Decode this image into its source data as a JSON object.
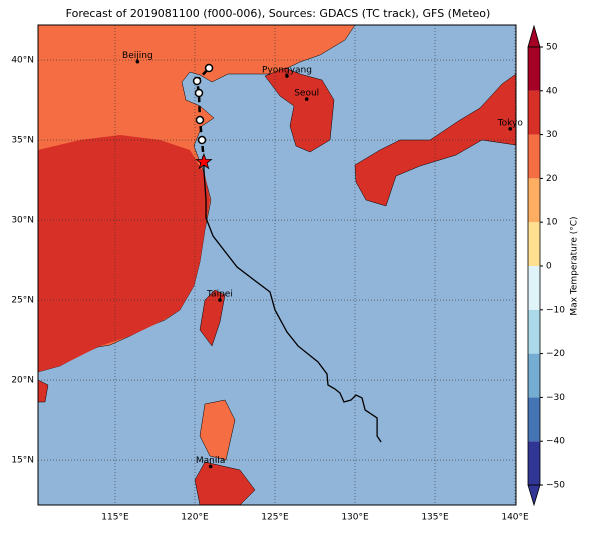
{
  "title": "Forecast of 2019081100 (f000-006), Sources: GDACS (TC track), GFS (Meteo)",
  "map": {
    "xlim": [
      110.19,
      140.06
    ],
    "ylim": [
      12.19,
      42.19
    ],
    "xticks": [
      {
        "value": 115,
        "label": "115°E"
      },
      {
        "value": 120,
        "label": "120°E"
      },
      {
        "value": 125,
        "label": "125°E"
      },
      {
        "value": 130,
        "label": "130°E"
      },
      {
        "value": 135,
        "label": "135°E"
      },
      {
        "value": 140,
        "label": "140°E"
      }
    ],
    "yticks": [
      {
        "value": 15,
        "label": "15°N"
      },
      {
        "value": 20,
        "label": "20°N"
      },
      {
        "value": 25,
        "label": "25°N"
      },
      {
        "value": 30,
        "label": "30°N"
      },
      {
        "value": 35,
        "label": "35°N"
      },
      {
        "value": 40,
        "label": "40°N"
      }
    ],
    "grid": true,
    "cities": [
      {
        "name": "Beijing",
        "lon": 116.4,
        "lat": 39.9
      },
      {
        "name": "Pyongyang",
        "lon": 125.75,
        "lat": 39.0
      },
      {
        "name": "Seoul",
        "lon": 126.98,
        "lat": 37.56
      },
      {
        "name": "Tokyo",
        "lon": 139.7,
        "lat": 35.7
      },
      {
        "name": "Taipei",
        "lon": 121.56,
        "lat": 25.0
      },
      {
        "name": "Manila",
        "lon": 120.98,
        "lat": 14.6
      }
    ],
    "track": {
      "color": "#000000",
      "lon": [
        131.63,
        131.38,
        131.38,
        130.63,
        130.44,
        130.06,
        129.75,
        129.31,
        129.06,
        128.75,
        128.31,
        128.25,
        127.69,
        126.44,
        125.75,
        125.0,
        124.69,
        122.63,
        121.13,
        120.69,
        120.69,
        120.56,
        120.56
      ],
      "lat": [
        16.13,
        16.5,
        17.63,
        18.13,
        18.88,
        19.06,
        18.75,
        18.63,
        19.19,
        19.44,
        19.69,
        20.38,
        21.13,
        22.13,
        23.0,
        24.38,
        25.5,
        27.06,
        29.0,
        30.13,
        31.25,
        33.13,
        33.63
      ]
    },
    "forecast": {
      "lon": [
        120.56,
        120.44,
        120.31,
        120.25,
        120.13,
        120.88
      ],
      "lat": [
        33.63,
        35.0,
        36.25,
        37.94,
        38.69,
        39.5
      ]
    },
    "position": {
      "lon": 120.56,
      "lat": 33.63,
      "color": "#ff0000"
    }
  },
  "colorbar": {
    "label": "Max Temperature (°C)",
    "lim": [
      -50,
      50
    ],
    "ticks": [
      {
        "value": -50,
        "label": "−50"
      },
      {
        "value": -40,
        "label": "−40"
      },
      {
        "value": -30,
        "label": "−30"
      },
      {
        "value": -20,
        "label": "−20"
      },
      {
        "value": -10,
        "label": "−10"
      },
      0,
      10,
      20,
      30,
      40,
      50
    ],
    "colors": [
      "#313695",
      "#4575b4",
      "#74add1",
      "#abd9e9",
      "#e0f3f8",
      "#fee090",
      "#fdae61",
      "#f46d43",
      "#d73027",
      "#a50026"
    ]
  }
}
